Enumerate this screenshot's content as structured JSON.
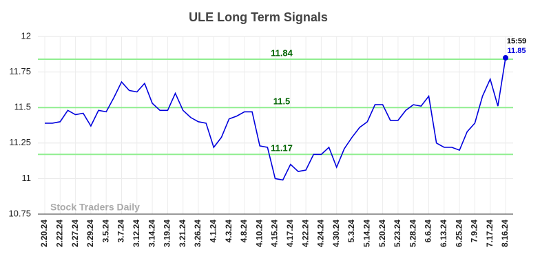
{
  "chart_data": {
    "type": "line",
    "title": "ULE Long Term Signals",
    "categories": [
      "2.20.24",
      null,
      "2.22.24",
      null,
      "2.27.24",
      null,
      "2.29.24",
      null,
      "3.5.24",
      null,
      "3.7.24",
      null,
      "3.12.24",
      null,
      "3.14.24",
      null,
      "3.19.24",
      null,
      "3.21.24",
      null,
      "3.26.24",
      null,
      "4.1.24",
      null,
      "4.3.24",
      null,
      "4.8.24",
      null,
      "4.10.24",
      null,
      "4.15.24",
      null,
      "4.17.24",
      null,
      "4.22.24",
      null,
      "4.24.24",
      null,
      "4.30.24",
      null,
      "5.3.24",
      null,
      "5.14.24",
      null,
      "5.20.24",
      null,
      "5.23.24",
      null,
      "5.28.24",
      null,
      "6.6.24",
      null,
      "6.13.24",
      null,
      "6.25.24",
      null,
      "7.9.24",
      null,
      "7.17.24",
      null,
      "8.16.24"
    ],
    "values": [
      11.39,
      11.39,
      11.4,
      11.48,
      11.45,
      11.46,
      11.37,
      11.48,
      11.47,
      11.57,
      11.68,
      11.62,
      11.61,
      11.67,
      11.53,
      11.48,
      11.48,
      11.6,
      11.48,
      11.43,
      11.4,
      11.39,
      11.22,
      11.29,
      11.42,
      11.44,
      11.47,
      11.47,
      11.23,
      11.22,
      11.0,
      10.99,
      11.1,
      11.05,
      11.06,
      11.17,
      11.17,
      11.22,
      11.08,
      11.21,
      11.29,
      11.36,
      11.4,
      11.52,
      11.52,
      11.41,
      11.41,
      11.48,
      11.52,
      11.51,
      11.58,
      11.25,
      11.22,
      11.22,
      11.2,
      11.33,
      11.39,
      11.58,
      11.7,
      11.51,
      11.85
    ],
    "color": "#0000dd",
    "ylim": [
      10.75,
      12
    ],
    "yticks": [
      10.75,
      11,
      11.25,
      11.5,
      11.75,
      12
    ],
    "grid": true,
    "hlines": [
      {
        "value": 11.84,
        "color": "#90ee90"
      },
      {
        "value": 11.5,
        "color": "#90ee90"
      },
      {
        "value": 11.17,
        "color": "#90ee90"
      }
    ],
    "last_time": "15:59",
    "watermark": "Stock Traders Daily"
  }
}
